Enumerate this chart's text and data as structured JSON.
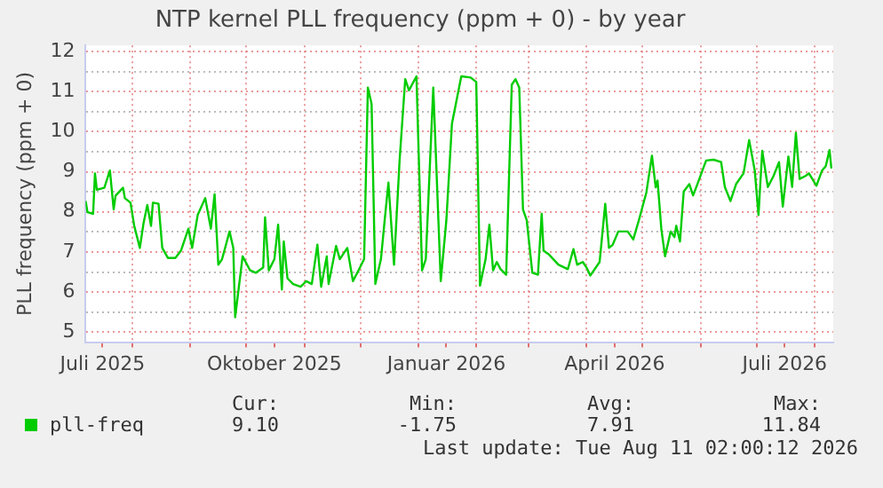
{
  "chart_data": {
    "type": "line",
    "title": "NTP kernel PLL frequency (ppm + 0) - by year",
    "ylabel": "PLL frequency (ppm + 0)",
    "x": [
      "2025-07-07",
      "2025-07-08",
      "2025-07-11",
      "2025-07-12",
      "2025-07-13",
      "2025-07-17",
      "2025-07-20",
      "2025-07-22",
      "2025-07-23",
      "2025-07-27",
      "2025-07-28",
      "2025-07-31",
      "2025-08-02",
      "2025-08-05",
      "2025-08-07",
      "2025-08-09",
      "2025-08-11",
      "2025-08-12",
      "2025-08-15",
      "2025-08-17",
      "2025-08-20",
      "2025-08-24",
      "2025-08-27",
      "2025-08-31",
      "2025-09-02",
      "2025-09-05",
      "2025-09-09",
      "2025-09-12",
      "2025-09-14",
      "2025-09-16",
      "2025-09-18",
      "2025-09-22",
      "2025-09-24",
      "2025-09-25",
      "2025-09-27",
      "2025-09-29",
      "2025-10-03",
      "2025-10-06",
      "2025-10-10",
      "2025-10-11",
      "2025-10-13",
      "2025-10-16",
      "2025-10-18",
      "2025-10-20",
      "2025-10-21",
      "2025-10-23",
      "2025-10-26",
      "2025-10-30",
      "2025-11-02",
      "2025-11-05",
      "2025-11-08",
      "2025-11-10",
      "2025-11-13",
      "2025-11-14",
      "2025-11-18",
      "2025-11-20",
      "2025-11-24",
      "2025-11-27",
      "2025-11-30",
      "2025-12-03",
      "2025-12-05",
      "2025-12-07",
      "2025-12-09",
      "2025-12-12",
      "2025-12-14",
      "2025-12-16",
      "2025-12-19",
      "2025-12-22",
      "2025-12-25",
      "2025-12-27",
      "2025-12-31",
      "2026-01-03",
      "2026-01-05",
      "2026-01-09",
      "2026-01-13",
      "2026-01-16",
      "2026-01-19",
      "2026-01-24",
      "2026-01-29",
      "2026-02-01",
      "2026-02-03",
      "2026-02-06",
      "2026-02-08",
      "2026-02-10",
      "2026-02-12",
      "2026-02-14",
      "2026-02-17",
      "2026-02-20",
      "2026-02-22",
      "2026-02-24",
      "2026-02-26",
      "2026-02-28",
      "2026-03-03",
      "2026-03-06",
      "2026-03-08",
      "2026-03-09",
      "2026-03-12",
      "2026-03-17",
      "2026-03-22",
      "2026-03-25",
      "2026-03-27",
      "2026-03-30",
      "2026-04-01",
      "2026-04-03",
      "2026-04-08",
      "2026-04-11",
      "2026-04-13",
      "2026-04-15",
      "2026-04-18",
      "2026-04-23",
      "2026-04-26",
      "2026-04-29",
      "2026-05-03",
      "2026-05-06",
      "2026-05-08",
      "2026-05-09",
      "2026-05-11",
      "2026-05-13",
      "2026-05-16",
      "2026-05-18",
      "2026-05-19",
      "2026-05-21",
      "2026-05-23",
      "2026-05-26",
      "2026-05-28",
      "2026-05-30",
      "2026-06-02",
      "2026-06-04",
      "2026-06-08",
      "2026-06-12",
      "2026-06-14",
      "2026-06-17",
      "2026-06-20",
      "2026-06-24",
      "2026-06-27",
      "2026-06-30",
      "2026-07-02",
      "2026-07-04",
      "2026-07-07",
      "2026-07-10",
      "2026-07-13",
      "2026-07-15",
      "2026-07-18",
      "2026-07-20",
      "2026-07-22",
      "2026-07-24",
      "2026-07-27",
      "2026-07-29",
      "2026-08-02",
      "2026-08-05",
      "2026-08-07",
      "2026-08-09",
      "2026-08-10"
    ],
    "series": [
      {
        "name": "pll-freq",
        "color": "#00cc00",
        "values": [
          8.27,
          7.99,
          7.95,
          8.96,
          8.55,
          8.6,
          9.03,
          8.06,
          8.4,
          8.6,
          8.34,
          8.23,
          7.65,
          7.1,
          7.72,
          8.17,
          7.65,
          8.23,
          8.2,
          7.1,
          6.85,
          6.85,
          7.03,
          7.58,
          7.1,
          7.93,
          8.34,
          7.58,
          8.44,
          6.68,
          6.82,
          7.51,
          7.1,
          5.37,
          6.13,
          6.89,
          6.54,
          6.48,
          6.61,
          7.86,
          6.54,
          6.82,
          7.68,
          6.06,
          7.26,
          6.34,
          6.2,
          6.13,
          6.27,
          6.2,
          7.18,
          6.13,
          6.89,
          6.2,
          7.15,
          6.82,
          7.1,
          6.27,
          6.54,
          6.82,
          11.1,
          10.69,
          6.2,
          6.82,
          7.79,
          8.73,
          6.68,
          9.3,
          11.31,
          11.03,
          11.38,
          6.54,
          6.82,
          11.1,
          6.27,
          7.79,
          10.2,
          11.38,
          11.35,
          11.24,
          6.16,
          6.82,
          7.68,
          6.54,
          6.75,
          6.57,
          6.43,
          11.17,
          11.31,
          11.1,
          8.06,
          7.79,
          6.48,
          6.43,
          7.95,
          7.03,
          6.93,
          6.68,
          6.57,
          7.07,
          6.68,
          6.75,
          6.61,
          6.41,
          6.75,
          8.2,
          7.1,
          7.18,
          7.51,
          7.51,
          7.31,
          7.79,
          8.48,
          9.4,
          8.61,
          8.78,
          7.58,
          6.89,
          7.51,
          7.37,
          7.65,
          7.26,
          8.51,
          8.69,
          8.41,
          8.65,
          9.03,
          9.28,
          9.3,
          9.24,
          8.62,
          8.27,
          8.69,
          8.96,
          9.79,
          9.03,
          7.92,
          9.52,
          8.62,
          8.89,
          9.24,
          8.13,
          9.38,
          8.62,
          9.97,
          8.82,
          8.89,
          8.96,
          8.65,
          9.03,
          9.14,
          9.54,
          9.08
        ]
      }
    ],
    "xlim": [
      "2025-07-07",
      "2026-08-11"
    ],
    "xticks": [
      {
        "value": "2025-07-16",
        "label": "Juli 2025"
      },
      {
        "value": "2025-08-01",
        "label": null
      },
      {
        "value": "2025-09-01",
        "label": null
      },
      {
        "value": "2025-10-01",
        "label": null
      },
      {
        "value": "2025-10-16",
        "label": "Oktober 2025"
      },
      {
        "value": "2025-11-01",
        "label": null
      },
      {
        "value": "2025-12-01",
        "label": null
      },
      {
        "value": "2026-01-01",
        "label": null
      },
      {
        "value": "2026-01-16",
        "label": "Januar 2026"
      },
      {
        "value": "2026-02-01",
        "label": null
      },
      {
        "value": "2026-03-01",
        "label": null
      },
      {
        "value": "2026-04-01",
        "label": null
      },
      {
        "value": "2026-04-16",
        "label": "April 2026"
      },
      {
        "value": "2026-05-01",
        "label": null
      },
      {
        "value": "2026-06-01",
        "label": null
      },
      {
        "value": "2026-07-01",
        "label": null
      },
      {
        "value": "2026-07-16",
        "label": "Juli 2026"
      },
      {
        "value": "2026-08-01",
        "label": null
      }
    ],
    "ylim": [
      4.75,
      12.15
    ],
    "yticks": [
      5,
      {
        "value": 5.5,
        "label": null
      },
      6,
      {
        "value": 6.5,
        "label": null
      },
      7,
      {
        "value": 7.5,
        "label": null
      },
      8,
      {
        "value": 8.5,
        "label": null
      },
      9,
      {
        "value": 9.5,
        "label": null
      },
      10,
      {
        "value": 10.5,
        "label": null
      },
      11,
      {
        "value": 11.5,
        "label": null
      },
      12
    ],
    "grid": true,
    "legend": "bottom left",
    "marker": "none",
    "line_style": "solid",
    "annotations": [
      "Cur:",
      "Min:",
      "Avg:",
      "Max:",
      "9.10",
      "-1.75",
      "7.91",
      "11.84",
      "Last update: Tue Aug 11 02:00:12 2026"
    ]
  }
}
